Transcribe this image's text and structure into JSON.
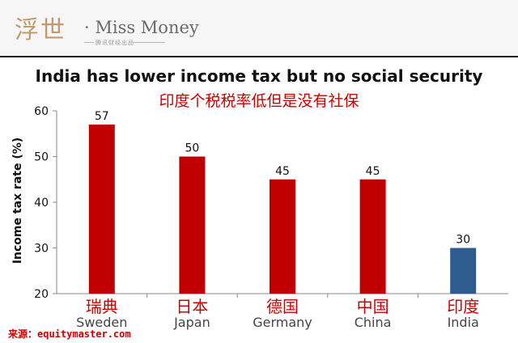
{
  "header": {
    "logo_cn": "浮世",
    "logo_en": "· Miss Money",
    "logo_sub": "腾讯财经出品"
  },
  "source_text": "来源：equitymaster.com",
  "chart_data": {
    "type": "bar",
    "title": "India has lower income tax but no social security",
    "subtitle": "印度个税税率低但是没有社保",
    "ylabel": "Income tax rate (%)",
    "xlabel": "",
    "ylim": [
      20,
      60
    ],
    "yticks": [
      20,
      30,
      40,
      50,
      60
    ],
    "grid": false,
    "categories": [
      "Sweden",
      "Japan",
      "Germany",
      "China",
      "India"
    ],
    "categories_cn": [
      "瑞典",
      "日本",
      "德国",
      "中国",
      "印度"
    ],
    "values": [
      57,
      50,
      45,
      45,
      30
    ],
    "data_labels": [
      "57",
      "50",
      "45",
      "45",
      "30"
    ],
    "colors": [
      "#c00000",
      "#c00000",
      "#c00000",
      "#c00000",
      "#2e5c8e"
    ],
    "category_cn_color": "#cc0000",
    "axis_color": "#888888"
  }
}
